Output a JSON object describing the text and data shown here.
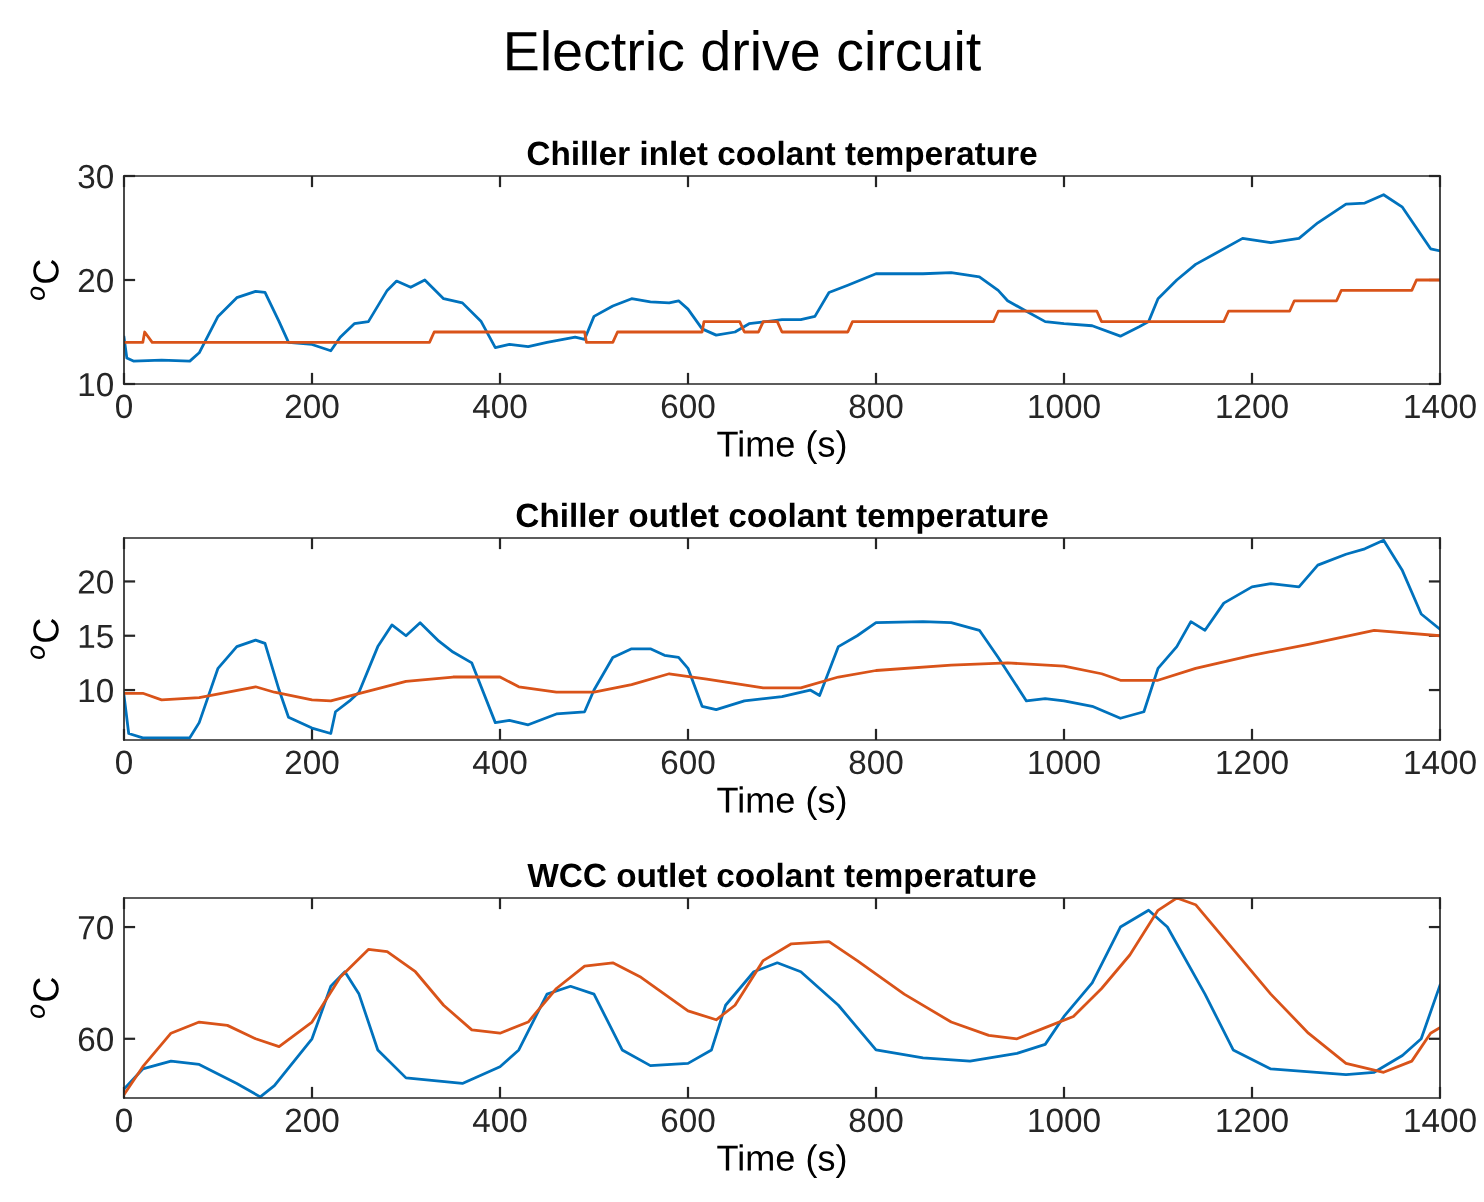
{
  "chart_data": [
    {
      "type": "line",
      "title": "Chiller inlet coolant temperature",
      "annotations": [
        "Electric drive circuit"
      ],
      "xlabel": "Time (s)",
      "ylabel": "$^{o}$C",
      "xlim": [
        0,
        1400
      ],
      "xticks": [
        0,
        200,
        400,
        600,
        800,
        1000,
        1200,
        1400
      ],
      "ylim": [
        10,
        30
      ],
      "yticks": [
        10,
        20,
        30
      ],
      "grid": false,
      "legend": false,
      "series": [
        {
          "color": "#0072bd",
          "x": [
            0,
            3,
            10,
            40,
            70,
            80,
            100,
            120,
            140,
            150,
            165,
            175,
            200,
            220,
            230,
            245,
            260,
            280,
            290,
            305,
            320,
            340,
            360,
            380,
            395,
            410,
            430,
            450,
            480,
            490,
            500,
            520,
            540,
            560,
            580,
            590,
            600,
            615,
            630,
            650,
            665,
            700,
            720,
            735,
            750,
            770,
            800,
            850,
            880,
            910,
            930,
            940,
            960,
            980,
            1000,
            1030,
            1060,
            1080,
            1090,
            1100,
            1120,
            1140,
            1160,
            1190,
            1220,
            1250,
            1270,
            1300,
            1320,
            1340,
            1360,
            1375,
            1390,
            1400
          ],
          "values": [
            14.5,
            12.5,
            12.2,
            12.3,
            12.2,
            13,
            16.5,
            18.3,
            18.9,
            18.8,
            16,
            14,
            13.8,
            13.2,
            14.5,
            15.8,
            16,
            19,
            19.9,
            19.3,
            20,
            18.2,
            17.8,
            16,
            13.5,
            13.8,
            13.6,
            14,
            14.5,
            14.3,
            16.5,
            17.5,
            18.2,
            17.9,
            17.8,
            18,
            17.2,
            15.3,
            14.7,
            15,
            15.8,
            16.2,
            16.2,
            16.5,
            18.8,
            19.5,
            20.6,
            20.6,
            20.7,
            20.3,
            19,
            18,
            17,
            16,
            15.8,
            15.6,
            14.6,
            15.5,
            16,
            18.2,
            20,
            21.5,
            22.5,
            24,
            23.6,
            24,
            25.5,
            27.3,
            27.4,
            28.2,
            27,
            25,
            23,
            22.8
          ]
        },
        {
          "color": "#d95319",
          "x": [
            0,
            20,
            22,
            30,
            325,
            330,
            490,
            492,
            520,
            525,
            615,
            617,
            655,
            660,
            675,
            680,
            695,
            700,
            770,
            775,
            925,
            930,
            1035,
            1040,
            1170,
            1175,
            1240,
            1245,
            1290,
            1295,
            1370,
            1375,
            1400
          ],
          "values": [
            14,
            14,
            15,
            14,
            14,
            15,
            15,
            14,
            14,
            15,
            15,
            16,
            16,
            15,
            15,
            16,
            16,
            15,
            15,
            16,
            16,
            17,
            17,
            16,
            16,
            17,
            17,
            18,
            18,
            19,
            19,
            20,
            20
          ]
        }
      ]
    },
    {
      "type": "line",
      "title": "Chiller outlet coolant temperature",
      "xlabel": "Time (s)",
      "ylabel": "$^{o}$C",
      "xlim": [
        0,
        1400
      ],
      "xticks": [
        0,
        200,
        400,
        600,
        800,
        1000,
        1200,
        1400
      ],
      "ylim": [
        5.4,
        24
      ],
      "yticks": [
        10,
        15,
        20
      ],
      "grid": false,
      "legend": false,
      "series": [
        {
          "color": "#0072bd",
          "x": [
            0,
            5,
            20,
            70,
            80,
            100,
            120,
            140,
            150,
            165,
            175,
            200,
            220,
            225,
            240,
            250,
            270,
            285,
            300,
            315,
            335,
            350,
            370,
            395,
            410,
            430,
            460,
            490,
            500,
            520,
            540,
            560,
            575,
            590,
            600,
            615,
            630,
            660,
            700,
            730,
            740,
            760,
            780,
            800,
            850,
            880,
            910,
            930,
            960,
            980,
            1000,
            1030,
            1060,
            1085,
            1100,
            1120,
            1135,
            1150,
            1170,
            1200,
            1220,
            1250,
            1270,
            1300,
            1320,
            1340,
            1360,
            1380,
            1400
          ],
          "values": [
            9.5,
            6,
            5.6,
            5.6,
            7,
            12,
            14,
            14.6,
            14.3,
            10,
            7.5,
            6.5,
            6,
            8,
            9,
            9.8,
            14,
            16,
            15,
            16.2,
            14.5,
            13.5,
            12.5,
            7,
            7.2,
            6.8,
            7.8,
            8,
            10,
            13,
            13.8,
            13.8,
            13.2,
            13,
            12,
            8.5,
            8.2,
            9,
            9.4,
            10,
            9.5,
            14,
            15,
            16.2,
            16.3,
            16.2,
            15.5,
            13,
            9,
            9.2,
            9,
            8.5,
            7.4,
            8,
            12,
            14,
            16.3,
            15.5,
            18,
            19.5,
            19.8,
            19.5,
            21.5,
            22.5,
            23,
            23.8,
            21,
            17,
            15.6
          ]
        },
        {
          "color": "#d95319",
          "x": [
            0,
            20,
            40,
            80,
            140,
            160,
            200,
            220,
            260,
            300,
            350,
            400,
            420,
            460,
            500,
            540,
            580,
            620,
            680,
            720,
            760,
            800,
            880,
            940,
            1000,
            1040,
            1060,
            1100,
            1140,
            1200,
            1260,
            1330,
            1400
          ],
          "values": [
            9.7,
            9.7,
            9.1,
            9.3,
            10.3,
            9.8,
            9.1,
            9,
            9.9,
            10.8,
            11.2,
            11.2,
            10.3,
            9.8,
            9.8,
            10.5,
            11.5,
            11,
            10.2,
            10.2,
            11.2,
            11.8,
            12.3,
            12.5,
            12.2,
            11.5,
            10.9,
            10.9,
            12,
            13.2,
            14.2,
            15.5,
            15
          ]
        }
      ]
    },
    {
      "type": "line",
      "title": "WCC outlet coolant temperature",
      "xlabel": "Time (s)",
      "ylabel": "$^{o}$C",
      "xlim": [
        0,
        1400
      ],
      "xticks": [
        0,
        200,
        400,
        600,
        800,
        1000,
        1200,
        1400
      ],
      "ylim": [
        54.7,
        72.6
      ],
      "yticks": [
        60,
        70
      ],
      "grid": false,
      "legend": false,
      "series": [
        {
          "color": "#0072bd",
          "x": [
            0,
            20,
            50,
            80,
            120,
            145,
            160,
            200,
            220,
            235,
            250,
            270,
            300,
            360,
            400,
            420,
            450,
            475,
            500,
            530,
            560,
            600,
            625,
            640,
            670,
            695,
            720,
            760,
            800,
            850,
            900,
            950,
            980,
            1000,
            1030,
            1060,
            1090,
            1110,
            1150,
            1180,
            1220,
            1300,
            1330,
            1360,
            1380,
            1400
          ],
          "values": [
            55.5,
            57.3,
            58,
            57.7,
            56,
            54.8,
            55.8,
            60,
            64.7,
            66,
            64,
            59,
            56.5,
            56,
            57.5,
            59,
            64,
            64.7,
            64,
            59,
            57.6,
            57.8,
            59,
            63,
            66,
            66.8,
            66,
            63,
            59,
            58.3,
            58,
            58.7,
            59.5,
            62,
            65,
            70,
            71.5,
            70,
            64,
            59,
            57.3,
            56.8,
            57,
            58.5,
            60,
            64.8
          ]
        },
        {
          "color": "#d95319",
          "x": [
            0,
            20,
            50,
            80,
            110,
            140,
            165,
            200,
            230,
            260,
            280,
            310,
            340,
            370,
            400,
            430,
            460,
            490,
            520,
            550,
            600,
            630,
            650,
            680,
            710,
            750,
            780,
            830,
            880,
            920,
            950,
            980,
            1010,
            1040,
            1070,
            1100,
            1120,
            1140,
            1180,
            1220,
            1260,
            1300,
            1340,
            1370,
            1390,
            1400
          ],
          "values": [
            55,
            57.5,
            60.5,
            61.5,
            61.2,
            60,
            59.3,
            61.5,
            65.5,
            68,
            67.8,
            66,
            63,
            60.8,
            60.5,
            61.5,
            64.5,
            66.5,
            66.8,
            65.5,
            62.5,
            61.7,
            63,
            67,
            68.5,
            68.7,
            67,
            64,
            61.5,
            60.3,
            60,
            61,
            62,
            64.5,
            67.5,
            71.5,
            72.6,
            72,
            68,
            64,
            60.5,
            57.8,
            57,
            58,
            60.5,
            61
          ]
        }
      ]
    }
  ]
}
